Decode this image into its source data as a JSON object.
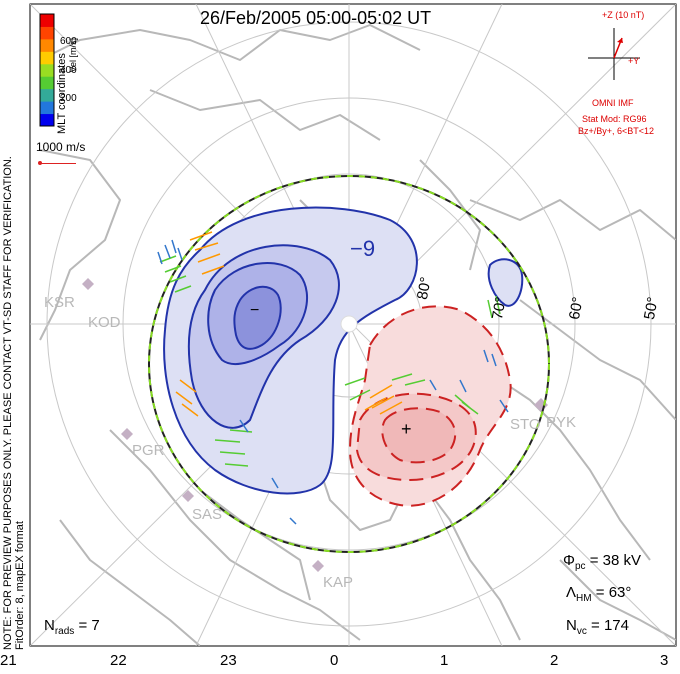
{
  "title": "26/Feb/2005 05:00-05:02 UT",
  "coords_label": "MLT coordinates",
  "colorbar": {
    "label": "Vel [m/s]",
    "ticks": [
      "600",
      "400",
      "200"
    ],
    "colors": [
      "#0000ee",
      "#2277dd",
      "#33aa99",
      "#55cc33",
      "#99dd22",
      "#ffcc00",
      "#ff8800",
      "#ff4400",
      "#ee0000"
    ]
  },
  "scale_vector": "1000 m/s",
  "watermark": "NOTE: FOR PREVIEW PURPOSES ONLY. PLEASE CONTACT VT-SD STAFF FOR VERIFICATION.",
  "fit_info": "FitOrder: 8, mapEX format",
  "imf": {
    "z_label": "+Z (10 nT)",
    "y_label": "+Y",
    "source": "OMNI IMF",
    "stat_mod": "Stat Mod: RG96",
    "condition": "Bz+/By+, 6<BT<12"
  },
  "stats": {
    "phi_label": "Φ",
    "phi_sub": "pc",
    "phi_value": " = 38 kV",
    "lambda_label": "Λ",
    "lambda_sub": "HM",
    "lambda_value": " = 63°",
    "nvc_label": "N",
    "nvc_sub": "vc",
    "nvc_value": " = 174",
    "nrads_label": "N",
    "nrads_sub": "rads",
    "nrads_value": " = 7"
  },
  "latitude_labels": [
    "80°",
    "70°",
    "60°",
    "50°"
  ],
  "contour_labels": [
    "−9",
    "−",
    "+"
  ],
  "stations": [
    "KSR",
    "KOD",
    "PGR",
    "SAS",
    "KAP",
    "STO",
    "PYK"
  ],
  "chart_data": {
    "type": "map",
    "title": "26/Feb/2005 05:00-05:02 UT",
    "xlabel": "MLT",
    "mlt_ticks": [
      "21",
      "22",
      "23",
      "0",
      "1",
      "2",
      "3"
    ],
    "latitude_circles": [
      80,
      70,
      60,
      50
    ],
    "potential_pc_kV": 38,
    "heppner_maynard_boundary_deg": 63,
    "n_vectors": 174,
    "n_radars": 7,
    "velocity_scale_ms": 1000
  }
}
